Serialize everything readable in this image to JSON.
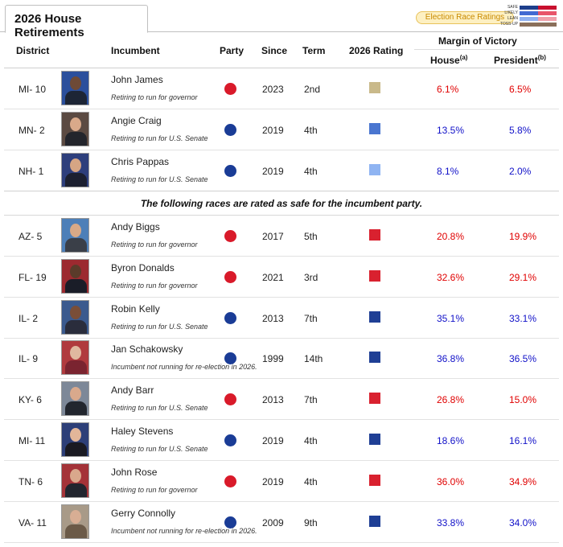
{
  "tab": {
    "label": "2026 House Retirements"
  },
  "ratings_button": {
    "label": "Election Race Ratings"
  },
  "legend": {
    "items": [
      {
        "label": "SAFE",
        "dem_color": "#1e3f8c",
        "rep_color": "#c8102e"
      },
      {
        "label": "LIKELY",
        "dem_color": "#4169d2",
        "rep_color": "#e8556a"
      },
      {
        "label": "LEAN",
        "dem_color": "#8fb0f0",
        "rep_color": "#f0a0aa"
      },
      {
        "label": "TOSS-UP",
        "dem_color": "#8a6f5a",
        "rep_color": "#8a6f5a"
      }
    ]
  },
  "headers": {
    "district": "District",
    "incumbent": "Incumbent",
    "party": "Party",
    "since": "Since",
    "term": "Term",
    "rating": "2026 Rating",
    "margin": "Margin of Victory",
    "house": "House",
    "house_sup": "(a)",
    "president": "President",
    "president_sup": "(b)"
  },
  "safe_message": "The following races are rated as safe for the incumbent party.",
  "colors": {
    "rep_party": "#d91a2a",
    "dem_party": "#1a3c96",
    "toss_up": "#c9b98a",
    "likely_dem": "#4a76d0",
    "lean_dem": "#8fb4f2",
    "safe_rep": "#d9212f",
    "safe_dem": "#1f3f95"
  },
  "competitive_rows": [
    {
      "district": "MI- 10",
      "name": "John James",
      "note": "Retiring to run for governor",
      "party": "rep",
      "since": "2023",
      "term": "2nd",
      "rating": "toss_up",
      "house": "6.1%",
      "house_party": "rep",
      "pres": "6.5%",
      "pres_party": "rep",
      "skin": "#6e4a36",
      "bg": "#2b4f9c",
      "suit": "#1d2535"
    },
    {
      "district": "MN- 2",
      "name": "Angie Craig",
      "note": "Retiring to run for U.S. Senate",
      "party": "dem",
      "since": "2019",
      "term": "4th",
      "rating": "likely_dem",
      "house": "13.5%",
      "house_party": "dem",
      "pres": "5.8%",
      "pres_party": "dem",
      "skin": "#d9a98a",
      "bg": "#5b4a42",
      "suit": "#23252c"
    },
    {
      "district": "NH- 1",
      "name": "Chris Pappas",
      "note": "Retiring to run for U.S. Senate",
      "party": "dem",
      "since": "2019",
      "term": "4th",
      "rating": "lean_dem",
      "house": "8.1%",
      "house_party": "dem",
      "pres": "2.0%",
      "pres_party": "dem",
      "skin": "#d6a584",
      "bg": "#2e3f7c",
      "suit": "#1c2030"
    }
  ],
  "safe_rows": [
    {
      "district": "AZ- 5",
      "name": "Andy Biggs",
      "note": "Retiring to run for governor",
      "party": "rep",
      "since": "2017",
      "term": "5th",
      "rating": "safe_rep",
      "house": "20.8%",
      "house_party": "rep",
      "pres": "19.9%",
      "pres_party": "rep",
      "skin": "#d8a987",
      "bg": "#4d7fb8",
      "suit": "#3a3f48"
    },
    {
      "district": "FL- 19",
      "name": "Byron Donalds",
      "note": "Retiring to run for governor",
      "party": "rep",
      "since": "2021",
      "term": "3rd",
      "rating": "safe_rep",
      "house": "32.6%",
      "house_party": "rep",
      "pres": "29.1%",
      "pres_party": "rep",
      "skin": "#5a3b2a",
      "bg": "#9c2a30",
      "suit": "#1a1d28"
    },
    {
      "district": "IL- 2",
      "name": "Robin Kelly",
      "note": "Retiring to run for U.S. Senate",
      "party": "dem",
      "since": "2013",
      "term": "7th",
      "rating": "safe_dem",
      "house": "35.1%",
      "house_party": "dem",
      "pres": "33.1%",
      "pres_party": "dem",
      "skin": "#7a4e38",
      "bg": "#3b5a8e",
      "suit": "#2a2d3c"
    },
    {
      "district": "IL- 9",
      "name": "Jan Schakowsky",
      "note": "Incumbent not running for re-election in 2026.",
      "party": "dem",
      "since": "1999",
      "term": "14th",
      "rating": "safe_dem",
      "house": "36.8%",
      "house_party": "dem",
      "pres": "36.5%",
      "pres_party": "dem",
      "skin": "#e0b8a0",
      "bg": "#b03a3e",
      "suit": "#7a2430"
    },
    {
      "district": "KY- 6",
      "name": "Andy Barr",
      "note": "Retiring to run for U.S. Senate",
      "party": "rep",
      "since": "2013",
      "term": "7th",
      "rating": "safe_rep",
      "house": "26.8%",
      "house_party": "rep",
      "pres": "15.0%",
      "pres_party": "rep",
      "skin": "#d9a98c",
      "bg": "#7d8898",
      "suit": "#22262e"
    },
    {
      "district": "MI- 11",
      "name": "Haley Stevens",
      "note": "Retiring to run for U.S. Senate",
      "party": "dem",
      "since": "2019",
      "term": "4th",
      "rating": "safe_dem",
      "house": "18.6%",
      "house_party": "dem",
      "pres": "16.1%",
      "pres_party": "dem",
      "skin": "#e2b699",
      "bg": "#2d3f78",
      "suit": "#1a1a22"
    },
    {
      "district": "TN- 6",
      "name": "John Rose",
      "note": "Retiring to run for governor",
      "party": "rep",
      "since": "2019",
      "term": "4th",
      "rating": "safe_rep",
      "house": "36.0%",
      "house_party": "rep",
      "pres": "34.9%",
      "pres_party": "rep",
      "skin": "#d9a88c",
      "bg": "#a43338",
      "suit": "#22252e"
    },
    {
      "district": "VA- 11",
      "name": "Gerry Connolly",
      "note": "Incumbent not running for re-election in 2026.",
      "party": "dem",
      "since": "2009",
      "term": "9th",
      "rating": "safe_dem",
      "house": "33.8%",
      "house_party": "dem",
      "pres": "34.0%",
      "pres_party": "dem",
      "skin": "#d8ae94",
      "bg": "#a89a88",
      "suit": "#6b5a48"
    }
  ]
}
